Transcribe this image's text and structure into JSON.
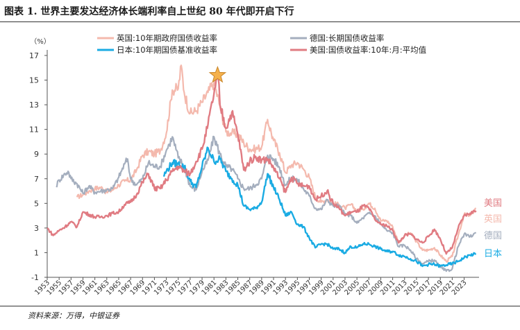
{
  "title": "图表 1. 世界主要发达经济体长端利率自上世纪 80 年代即开启下行",
  "source": "资料来源：万得，中银证券",
  "chart_data": {
    "type": "line",
    "unit_label": "（%）",
    "ylim": [
      -1,
      17
    ],
    "yticks": [
      -1,
      1,
      3,
      5,
      7,
      9,
      11,
      13,
      15,
      17
    ],
    "xlim": [
      1953,
      2025.5
    ],
    "xticks": [
      1953,
      1955,
      1957,
      1959,
      1961,
      1963,
      1965,
      1967,
      1969,
      1971,
      1973,
      1975,
      1977,
      1979,
      1981,
      1983,
      1985,
      1987,
      1989,
      1991,
      1993,
      1995,
      1997,
      1999,
      2001,
      2003,
      2005,
      2007,
      2009,
      2011,
      2013,
      2015,
      2017,
      2019,
      2021,
      2023
    ],
    "grid": false,
    "legend_position": "top",
    "annotation": {
      "type": "star",
      "label": "",
      "x": 1981.6,
      "y": 15.4,
      "color": "#f5b14c"
    },
    "series": [
      {
        "name": "英国:10年期政府国债收益率",
        "end_label": "英国",
        "color": "#f4b9ad",
        "width": 2.2,
        "points": [
          [
            1958,
            5.5
          ],
          [
            1959,
            5.7
          ],
          [
            1960,
            6.0
          ],
          [
            1961,
            6.2
          ],
          [
            1962,
            6.3
          ],
          [
            1963,
            5.9
          ],
          [
            1964,
            6.1
          ],
          [
            1965,
            6.5
          ],
          [
            1966,
            6.8
          ],
          [
            1967,
            6.9
          ],
          [
            1968,
            7.7
          ],
          [
            1969,
            8.9
          ],
          [
            1970,
            9.2
          ],
          [
            1971,
            9.0
          ],
          [
            1972,
            9.3
          ],
          [
            1973,
            10.7
          ],
          [
            1974,
            14.2
          ],
          [
            1975,
            14.3
          ],
          [
            1975.5,
            16.2
          ],
          [
            1976,
            14.0
          ],
          [
            1977,
            12.3
          ],
          [
            1978,
            12.5
          ],
          [
            1979,
            13.2
          ],
          [
            1980,
            14.0
          ],
          [
            1981,
            14.8
          ],
          [
            1982,
            12.9
          ],
          [
            1983,
            10.8
          ],
          [
            1984,
            10.7
          ],
          [
            1985,
            10.6
          ],
          [
            1986,
            9.9
          ],
          [
            1987,
            9.4
          ],
          [
            1988,
            9.4
          ],
          [
            1989,
            9.6
          ],
          [
            1990,
            11.8
          ],
          [
            1991,
            10.1
          ],
          [
            1992,
            9.1
          ],
          [
            1993,
            7.5
          ],
          [
            1994,
            8.1
          ],
          [
            1995,
            8.3
          ],
          [
            1996,
            7.8
          ],
          [
            1997,
            7.1
          ],
          [
            1998,
            5.5
          ],
          [
            1999,
            5.1
          ],
          [
            2000,
            5.3
          ],
          [
            2001,
            5.0
          ],
          [
            2002,
            4.9
          ],
          [
            2003,
            4.6
          ],
          [
            2004,
            4.9
          ],
          [
            2005,
            4.4
          ],
          [
            2006,
            4.5
          ],
          [
            2007,
            5.0
          ],
          [
            2008,
            4.6
          ],
          [
            2009,
            3.6
          ],
          [
            2010,
            3.6
          ],
          [
            2011,
            3.1
          ],
          [
            2012,
            1.8
          ],
          [
            2013,
            2.4
          ],
          [
            2014,
            2.6
          ],
          [
            2015,
            1.9
          ],
          [
            2016,
            1.2
          ],
          [
            2017,
            1.2
          ],
          [
            2018,
            1.4
          ],
          [
            2019,
            0.8
          ],
          [
            2020,
            0.3
          ],
          [
            2021,
            0.7
          ],
          [
            2022,
            2.4
          ],
          [
            2023,
            4.1
          ],
          [
            2024,
            4.0
          ],
          [
            2025,
            4.6
          ]
        ]
      },
      {
        "name": "德国:长期国债收益率",
        "end_label": "德国",
        "color": "#a4aebe",
        "width": 2.2,
        "points": [
          [
            1954.5,
            6.4
          ],
          [
            1955,
            6.9
          ],
          [
            1956,
            7.4
          ],
          [
            1956.5,
            7.6
          ],
          [
            1957,
            7.0
          ],
          [
            1958,
            6.6
          ],
          [
            1959,
            5.8
          ],
          [
            1960,
            6.4
          ],
          [
            1961,
            5.9
          ],
          [
            1962,
            6.0
          ],
          [
            1963,
            6.1
          ],
          [
            1964,
            6.2
          ],
          [
            1965,
            7.1
          ],
          [
            1966,
            8.2
          ],
          [
            1966.5,
            8.6
          ],
          [
            1967,
            7.0
          ],
          [
            1968,
            6.5
          ],
          [
            1969,
            7.0
          ],
          [
            1970,
            8.3
          ],
          [
            1971,
            8.0
          ],
          [
            1972,
            8.0
          ],
          [
            1973,
            9.3
          ],
          [
            1973.5,
            9.8
          ],
          [
            1974,
            10.4
          ],
          [
            1975,
            8.7
          ],
          [
            1976,
            8.0
          ],
          [
            1977,
            6.4
          ],
          [
            1978,
            6.1
          ],
          [
            1979,
            7.6
          ],
          [
            1980,
            8.5
          ],
          [
            1981,
            10.4
          ],
          [
            1982,
            9.0
          ],
          [
            1983,
            8.0
          ],
          [
            1984,
            7.8
          ],
          [
            1985,
            7.0
          ],
          [
            1986,
            6.2
          ],
          [
            1987,
            6.2
          ],
          [
            1988,
            6.5
          ],
          [
            1989,
            7.0
          ],
          [
            1990,
            8.9
          ],
          [
            1991,
            8.6
          ],
          [
            1992,
            7.9
          ],
          [
            1993,
            6.5
          ],
          [
            1994,
            7.1
          ],
          [
            1995,
            6.9
          ],
          [
            1996,
            6.2
          ],
          [
            1997,
            5.6
          ],
          [
            1998,
            4.6
          ],
          [
            1999,
            4.5
          ],
          [
            2000,
            5.3
          ],
          [
            2001,
            4.8
          ],
          [
            2002,
            4.8
          ],
          [
            2003,
            4.1
          ],
          [
            2004,
            4.0
          ],
          [
            2005,
            3.4
          ],
          [
            2006,
            3.8
          ],
          [
            2007,
            4.2
          ],
          [
            2008,
            4.0
          ],
          [
            2009,
            3.3
          ],
          [
            2010,
            2.8
          ],
          [
            2011,
            2.6
          ],
          [
            2012,
            1.5
          ],
          [
            2013,
            1.6
          ],
          [
            2014,
            1.2
          ],
          [
            2015,
            0.5
          ],
          [
            2016,
            0.1
          ],
          [
            2017,
            0.3
          ],
          [
            2018,
            0.4
          ],
          [
            2019,
            -0.2
          ],
          [
            2020,
            -0.5
          ],
          [
            2021,
            -0.3
          ],
          [
            2022,
            1.5
          ],
          [
            2023,
            2.5
          ],
          [
            2024,
            2.3
          ],
          [
            2025,
            2.6
          ]
        ]
      },
      {
        "name": "日本:10年期国债基准收益率",
        "end_label": "日本",
        "color": "#1aabe3",
        "width": 2.4,
        "points": [
          [
            1972.5,
            7.2
          ],
          [
            1973,
            7.6
          ],
          [
            1974,
            8.3
          ],
          [
            1975,
            8.2
          ],
          [
            1976,
            8.0
          ],
          [
            1977,
            6.8
          ],
          [
            1978,
            6.3
          ],
          [
            1979,
            8.0
          ],
          [
            1980,
            9.5
          ],
          [
            1981,
            8.4
          ],
          [
            1982,
            8.6
          ],
          [
            1983,
            7.6
          ],
          [
            1984,
            7.0
          ],
          [
            1985,
            6.5
          ],
          [
            1986,
            4.8
          ],
          [
            1987,
            4.5
          ],
          [
            1988,
            4.6
          ],
          [
            1989,
            5.1
          ],
          [
            1990,
            7.4
          ],
          [
            1991,
            6.3
          ],
          [
            1992,
            5.3
          ],
          [
            1993,
            4.0
          ],
          [
            1994,
            4.3
          ],
          [
            1995,
            3.3
          ],
          [
            1996,
            3.1
          ],
          [
            1997,
            2.2
          ],
          [
            1998,
            1.4
          ],
          [
            1999,
            1.7
          ],
          [
            2000,
            1.7
          ],
          [
            2001,
            1.3
          ],
          [
            2002,
            1.3
          ],
          [
            2003,
            1.0
          ],
          [
            2004,
            1.5
          ],
          [
            2005,
            1.4
          ],
          [
            2006,
            1.7
          ],
          [
            2007,
            1.7
          ],
          [
            2008,
            1.5
          ],
          [
            2009,
            1.3
          ],
          [
            2010,
            1.1
          ],
          [
            2011,
            1.1
          ],
          [
            2012,
            0.8
          ],
          [
            2013,
            0.7
          ],
          [
            2014,
            0.5
          ],
          [
            2015,
            0.3
          ],
          [
            2016,
            -0.1
          ],
          [
            2017,
            0.05
          ],
          [
            2018,
            0.05
          ],
          [
            2019,
            -0.1
          ],
          [
            2020,
            0.0
          ],
          [
            2021,
            0.1
          ],
          [
            2022,
            0.3
          ],
          [
            2023,
            0.6
          ],
          [
            2024,
            0.8
          ],
          [
            2025,
            0.9
          ]
        ]
      },
      {
        "name": "美国:国债收益率:10年:月:平均值",
        "end_label": "美国",
        "color": "#e07b82",
        "width": 2.4,
        "points": [
          [
            1953,
            3.0
          ],
          [
            1954,
            2.4
          ],
          [
            1955,
            2.8
          ],
          [
            1956,
            3.1
          ],
          [
            1957,
            3.5
          ],
          [
            1958,
            3.1
          ],
          [
            1959,
            4.3
          ],
          [
            1960,
            4.1
          ],
          [
            1961,
            3.9
          ],
          [
            1962,
            3.9
          ],
          [
            1963,
            4.0
          ],
          [
            1964,
            4.2
          ],
          [
            1965,
            4.3
          ],
          [
            1966,
            4.9
          ],
          [
            1967,
            5.1
          ],
          [
            1968,
            5.7
          ],
          [
            1969,
            6.7
          ],
          [
            1970,
            7.4
          ],
          [
            1971,
            6.2
          ],
          [
            1972,
            6.2
          ],
          [
            1973,
            6.9
          ],
          [
            1974,
            7.6
          ],
          [
            1975,
            8.0
          ],
          [
            1976,
            7.6
          ],
          [
            1977,
            7.4
          ],
          [
            1978,
            8.4
          ],
          [
            1979,
            9.4
          ],
          [
            1980,
            11.4
          ],
          [
            1981,
            13.9
          ],
          [
            1981.7,
            15.3
          ],
          [
            1982,
            13.0
          ],
          [
            1983,
            11.1
          ],
          [
            1984,
            12.4
          ],
          [
            1985,
            10.6
          ],
          [
            1986,
            7.7
          ],
          [
            1987,
            8.4
          ],
          [
            1988,
            8.8
          ],
          [
            1989,
            8.5
          ],
          [
            1990,
            8.6
          ],
          [
            1991,
            7.9
          ],
          [
            1992,
            7.0
          ],
          [
            1993,
            5.9
          ],
          [
            1994,
            7.1
          ],
          [
            1995,
            6.6
          ],
          [
            1996,
            6.4
          ],
          [
            1997,
            6.4
          ],
          [
            1998,
            5.3
          ],
          [
            1999,
            5.6
          ],
          [
            2000,
            6.0
          ],
          [
            2001,
            5.0
          ],
          [
            2002,
            4.6
          ],
          [
            2003,
            4.0
          ],
          [
            2004,
            4.3
          ],
          [
            2005,
            4.3
          ],
          [
            2006,
            4.8
          ],
          [
            2007,
            4.6
          ],
          [
            2008,
            3.7
          ],
          [
            2009,
            3.3
          ],
          [
            2010,
            3.2
          ],
          [
            2011,
            2.8
          ],
          [
            2012,
            1.8
          ],
          [
            2013,
            2.4
          ],
          [
            2014,
            2.5
          ],
          [
            2015,
            2.1
          ],
          [
            2016,
            1.8
          ],
          [
            2017,
            2.3
          ],
          [
            2018,
            2.9
          ],
          [
            2019,
            2.1
          ],
          [
            2020,
            0.9
          ],
          [
            2021,
            1.4
          ],
          [
            2022,
            3.0
          ],
          [
            2023,
            4.0
          ],
          [
            2024,
            4.2
          ],
          [
            2025,
            4.4
          ]
        ]
      }
    ]
  }
}
